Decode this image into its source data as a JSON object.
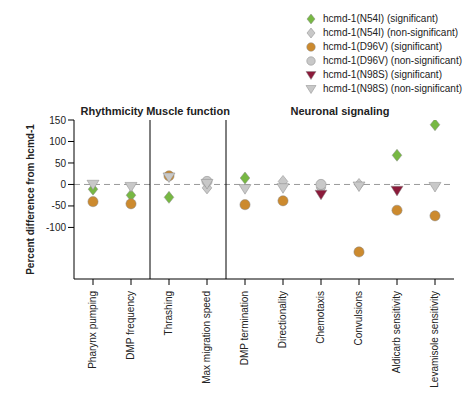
{
  "chart_data": {
    "type": "scatter",
    "y_label": "Percent difference from hcmd-1",
    "categories": [
      "Pharynx pumping",
      "DMP frequency",
      "Thrashing",
      "Max migration speed",
      "DMP termination",
      "Directionality",
      "Chemotaxis",
      "Convulsions",
      "Aldicarb sensitivity",
      "Levamisole sensitivity"
    ],
    "groups": [
      {
        "label": "Rhythmicity",
        "categories": [
          "Pharynx pumping",
          "DMP frequency"
        ]
      },
      {
        "label": "Muscle function",
        "categories": [
          "Thrashing",
          "Max migration speed"
        ]
      },
      {
        "label": "Neuronal signaling",
        "categories": [
          "DMP termination",
          "Directionality",
          "Chemotaxis",
          "Convulsions",
          "Aldicarb sensitivity",
          "Levamisole sensitivity"
        ]
      }
    ],
    "baseline": 0,
    "ylim": [
      -220,
      150
    ],
    "yticks": [
      -100,
      -50,
      0,
      50,
      100,
      150
    ],
    "series": [
      {
        "name": "hcmd-1(N54I) (significant)",
        "color": "#77b843",
        "marker": "diamond",
        "values": [
          -11,
          -25,
          -30,
          null,
          15,
          null,
          null,
          null,
          68,
          139
        ]
      },
      {
        "name": "hcmd-1(N54I) (non-significant)",
        "color": "#c8c8c8",
        "marker": "diamond",
        "values": [
          null,
          null,
          null,
          -8,
          null,
          7,
          -8,
          0,
          null,
          null
        ]
      },
      {
        "name": "hcmd-1(D96V) (significant)",
        "color": "#cc8a2e",
        "marker": "circle",
        "values": [
          -40,
          -45,
          20,
          null,
          -47,
          -38,
          null,
          -157,
          -60,
          -73
        ]
      },
      {
        "name": "hcmd-1(D96V) (non-significant)",
        "color": "#c8c8c8",
        "marker": "circle",
        "values": [
          null,
          null,
          null,
          7,
          null,
          null,
          0,
          null,
          null,
          null
        ]
      },
      {
        "name": "hcmd-1(N98S) (significant)",
        "color": "#8b1a3a",
        "marker": "triangle_down",
        "values": [
          null,
          null,
          null,
          null,
          null,
          null,
          -23,
          null,
          -14,
          null
        ]
      },
      {
        "name": "hcmd-1(N98S) (non-significant)",
        "color": "#c8c8c8",
        "marker": "triangle_down",
        "values": [
          0,
          -5,
          17,
          2,
          -10,
          -8,
          null,
          -4,
          null,
          -5
        ]
      }
    ],
    "legend": "upper right",
    "grid": false
  }
}
